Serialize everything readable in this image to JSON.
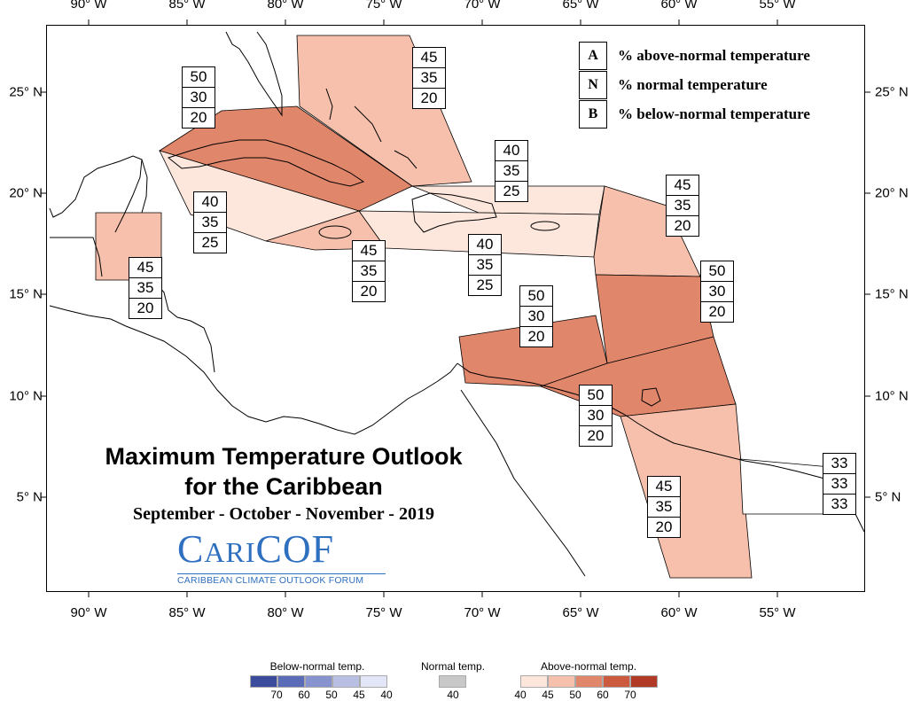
{
  "map": {
    "title_line1": "Maximum Temperature Outlook",
    "title_line2": "for the Caribbean",
    "period": "September - October - November - 2019",
    "logo_text": "CARICOF",
    "logo_subtitle": "CARIBBEAN CLIMATE OUTLOOK FORUM",
    "lon_labels": [
      "90° W",
      "85° W",
      "80° W",
      "75° W",
      "70° W",
      "65° W",
      "60° W",
      "55° W"
    ],
    "lat_labels": [
      "25° N",
      "20° N",
      "15° N",
      "10° N",
      "5° N"
    ]
  },
  "key": [
    {
      "letter": "A",
      "text": "% above-normal temperature"
    },
    {
      "letter": "N",
      "text": "% normal temperature"
    },
    {
      "letter": "B",
      "text": "% below-normal temperature"
    }
  ],
  "regions": [
    {
      "id": "bahamas",
      "a": "45",
      "n": "35",
      "b": "20",
      "color": "#f6c0ac"
    },
    {
      "id": "cuba",
      "a": "50",
      "n": "30",
      "b": "20",
      "color": "#e0866a"
    },
    {
      "id": "cayman",
      "a": "40",
      "n": "35",
      "b": "25",
      "color": "#fde6dc"
    },
    {
      "id": "belize",
      "a": "45",
      "n": "35",
      "b": "20",
      "color": "#f6c0ac"
    },
    {
      "id": "jamaica",
      "a": "45",
      "n": "35",
      "b": "20",
      "color": "#f6c0ac"
    },
    {
      "id": "turks",
      "a": "40",
      "n": "35",
      "b": "25",
      "color": "#fde6dc"
    },
    {
      "id": "hispaniola",
      "a": "40",
      "n": "35",
      "b": "25",
      "color": "#fde6dc"
    },
    {
      "id": "leewards",
      "a": "45",
      "n": "35",
      "b": "20",
      "color": "#f6c0ac"
    },
    {
      "id": "windwards",
      "a": "50",
      "n": "30",
      "b": "20",
      "color": "#e0866a"
    },
    {
      "id": "abc",
      "a": "50",
      "n": "30",
      "b": "20",
      "color": "#e0866a"
    },
    {
      "id": "trinidad",
      "a": "50",
      "n": "30",
      "b": "20",
      "color": "#e0866a"
    },
    {
      "id": "guyana",
      "a": "45",
      "n": "35",
      "b": "20",
      "color": "#f6c0ac"
    },
    {
      "id": "french-guiana",
      "a": "33",
      "n": "33",
      "b": "33",
      "color": "#ffffff"
    }
  ],
  "colorbar": {
    "below_title": "Below-normal temp.",
    "normal_title": "Normal temp.",
    "above_title": "Above-normal temp.",
    "below_colors": [
      "#3a4c9b",
      "#5a6bb8",
      "#8793cf",
      "#b8bfe3",
      "#e3e6f6"
    ],
    "below_labels": [
      "70",
      "60",
      "50",
      "45",
      "40"
    ],
    "normal_color": "#c8c8c8",
    "normal_label": "40",
    "above_colors": [
      "#fde6dc",
      "#f6c0ac",
      "#e0866a",
      "#cb5a3f",
      "#b03a26"
    ],
    "above_labels": [
      "40",
      "45",
      "50",
      "60",
      "70"
    ]
  }
}
